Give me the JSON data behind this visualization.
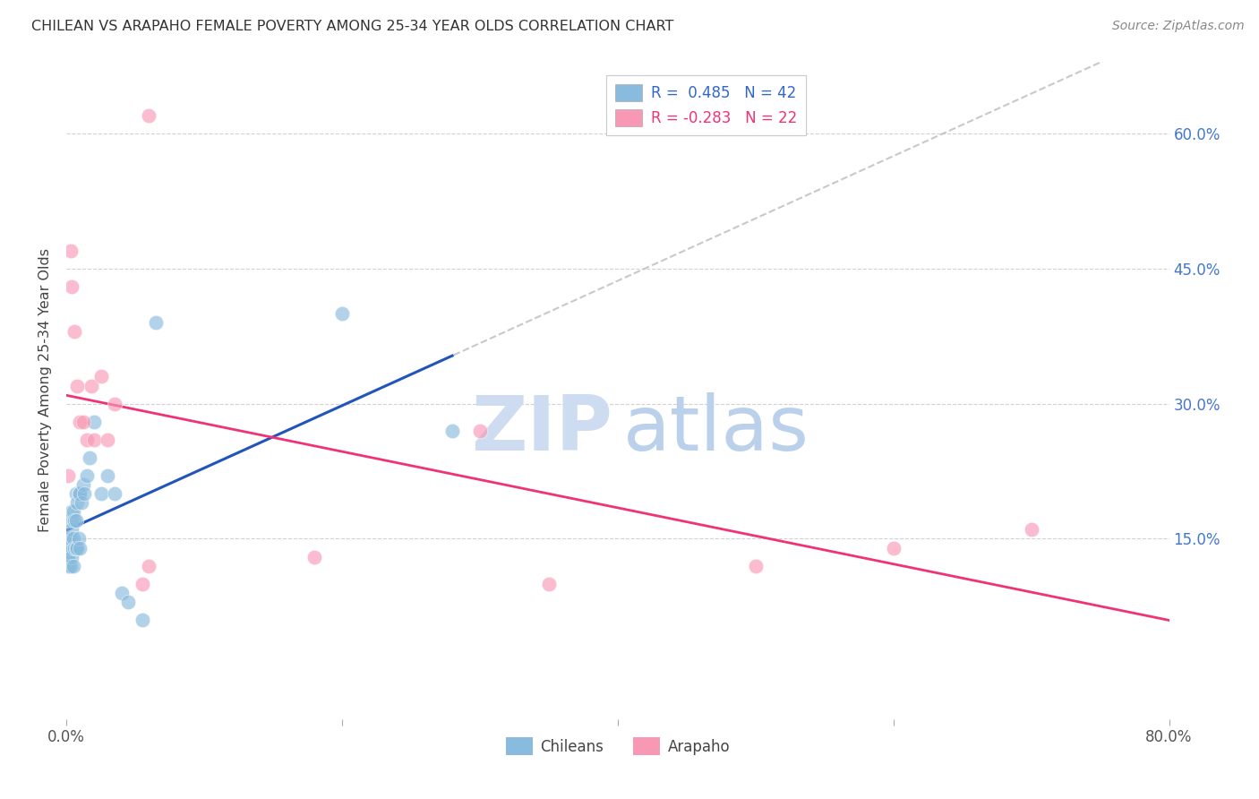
{
  "title": "CHILEAN VS ARAPAHO FEMALE POVERTY AMONG 25-34 YEAR OLDS CORRELATION CHART",
  "source": "Source: ZipAtlas.com",
  "ylabel": "Female Poverty Among 25-34 Year Olds",
  "xlim": [
    0.0,
    0.8
  ],
  "ylim": [
    -0.05,
    0.68
  ],
  "ytick_positions": [
    0.15,
    0.3,
    0.45,
    0.6
  ],
  "ytick_labels": [
    "15.0%",
    "30.0%",
    "45.0%",
    "60.0%"
  ],
  "chilean_label": "Chileans",
  "arapaho_label": "Arapaho",
  "blue_dot_color": "#88bbdd",
  "pink_dot_color": "#f898b4",
  "blue_line_color": "#2255bb",
  "pink_line_color": "#ee3377",
  "gray_dash_color": "#bbbbbb",
  "watermark_zip_color": "#cddcf0",
  "watermark_atlas_color": "#bad0eb",
  "legend_blue_text_color": "#3366cc",
  "legend_pink_text_color": "#ee3377",
  "chilean_x": [
    0.0005,
    0.001,
    0.001,
    0.0015,
    0.002,
    0.002,
    0.0025,
    0.003,
    0.003,
    0.003,
    0.004,
    0.004,
    0.004,
    0.005,
    0.005,
    0.005,
    0.006,
    0.006,
    0.007,
    0.007,
    0.007,
    0.008,
    0.008,
    0.009,
    0.009,
    0.01,
    0.01,
    0.011,
    0.012,
    0.013,
    0.015,
    0.017,
    0.02,
    0.025,
    0.03,
    0.035,
    0.04,
    0.045,
    0.055,
    0.065,
    0.2,
    0.28
  ],
  "chilean_y": [
    0.13,
    0.12,
    0.14,
    0.13,
    0.12,
    0.15,
    0.14,
    0.12,
    0.15,
    0.17,
    0.13,
    0.16,
    0.18,
    0.12,
    0.15,
    0.18,
    0.14,
    0.17,
    0.14,
    0.17,
    0.2,
    0.14,
    0.19,
    0.15,
    0.2,
    0.14,
    0.2,
    0.19,
    0.21,
    0.2,
    0.22,
    0.24,
    0.28,
    0.2,
    0.22,
    0.2,
    0.09,
    0.08,
    0.06,
    0.39,
    0.4,
    0.27
  ],
  "arapaho_x": [
    0.001,
    0.003,
    0.004,
    0.006,
    0.008,
    0.01,
    0.012,
    0.015,
    0.018,
    0.02,
    0.025,
    0.03,
    0.035,
    0.055,
    0.06,
    0.06,
    0.18,
    0.3,
    0.35,
    0.5,
    0.6,
    0.7
  ],
  "arapaho_y": [
    0.22,
    0.47,
    0.43,
    0.38,
    0.32,
    0.28,
    0.28,
    0.26,
    0.32,
    0.26,
    0.33,
    0.26,
    0.3,
    0.1,
    0.12,
    0.62,
    0.13,
    0.27,
    0.1,
    0.12,
    0.14,
    0.16
  ]
}
